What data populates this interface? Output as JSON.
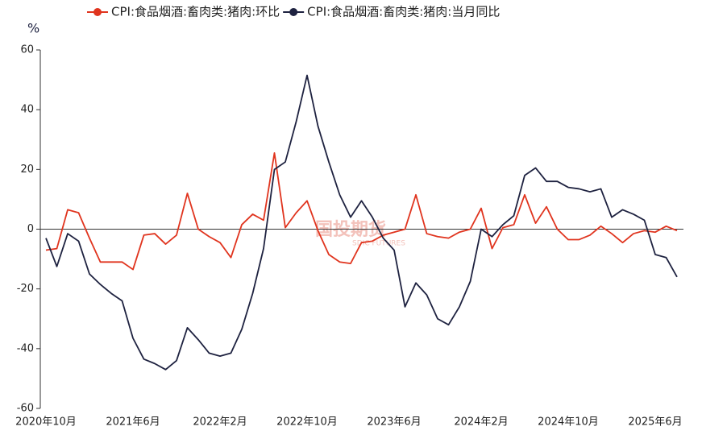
{
  "chart_data": {
    "type": "line",
    "y_label": "%",
    "watermark": "国投期货",
    "watermark_sub": "SDIC FUTURES",
    "categories": [
      "2020年10月",
      null,
      null,
      null,
      null,
      null,
      null,
      null,
      "2021年6月",
      null,
      null,
      null,
      null,
      null,
      null,
      null,
      "2022年2月",
      null,
      null,
      null,
      null,
      null,
      null,
      null,
      "2022年10月",
      null,
      null,
      null,
      null,
      null,
      null,
      null,
      "2023年6月",
      null,
      null,
      null,
      null,
      null,
      null,
      null,
      "2024年2月",
      null,
      null,
      null,
      null,
      null,
      null,
      null,
      "2024年10月",
      null,
      null,
      null,
      null,
      null,
      null,
      null,
      "2025年6月",
      null,
      null
    ],
    "series": [
      {
        "name": "CPI:食品烟酒:畜肉类:猪肉:环比",
        "color": "#e0341e",
        "values": [
          -7,
          -6.5,
          6.5,
          5.5,
          -3,
          -11,
          -11,
          -11,
          -13.5,
          -2,
          -1.5,
          -5,
          -2,
          12,
          0,
          -2.5,
          -4.5,
          -9.5,
          1.5,
          5,
          3,
          25.5,
          0.5,
          5.5,
          9.5,
          -0.5,
          -8.5,
          -11,
          -11.5,
          -4.5,
          -4,
          -2,
          -1,
          0,
          11.5,
          -1.5,
          -2.5,
          -3,
          -1,
          0,
          7,
          -6.5,
          0.5,
          1.5,
          11.5,
          2,
          7.5,
          0,
          -3.5,
          -3.5,
          -2,
          1,
          -1.5,
          -4.5,
          -1.5,
          -0.5,
          -1,
          1,
          -0.5
        ]
      },
      {
        "name": "CPI:食品烟酒:畜肉类:猪肉:当月同比",
        "color": "#1e2240",
        "values": [
          -3,
          -12.5,
          -1.5,
          -4,
          -15,
          -18.5,
          -21.5,
          -24,
          -36.5,
          -43.5,
          -45,
          -47,
          -44,
          -33,
          -37,
          -41.5,
          -42.5,
          -41.5,
          -33.5,
          -21.5,
          -6.5,
          20,
          22.5,
          36,
          51.5,
          34.5,
          22.5,
          11.5,
          4,
          9.5,
          4,
          -3,
          -7,
          -26,
          -18,
          -22,
          -30,
          -32,
          -26,
          -17.5,
          0,
          -2.5,
          1.5,
          4.5,
          18,
          20.5,
          16,
          16,
          14,
          13.5,
          12.5,
          13.5,
          4,
          6.5,
          5,
          3,
          -8.5,
          -9.5,
          -16
        ]
      }
    ],
    "ylim": [
      -60,
      60
    ],
    "yticks": [
      -60,
      -40,
      -20,
      0,
      20,
      40,
      60
    ]
  }
}
